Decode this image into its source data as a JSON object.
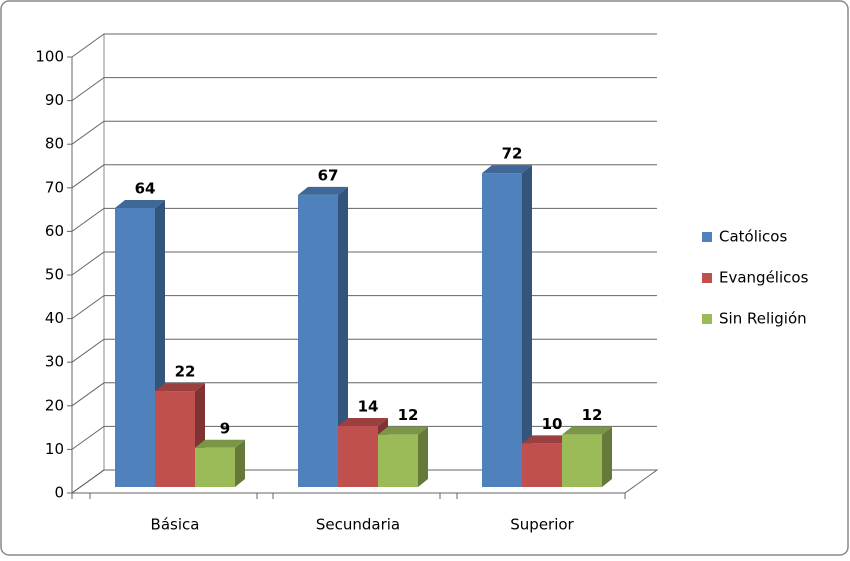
{
  "chart_data": {
    "type": "bar3d",
    "categories": [
      "Básica",
      "Secundaria",
      "Superior"
    ],
    "series": [
      {
        "name": "Católicos",
        "color": "#4f81bd",
        "values": [
          64,
          67,
          72
        ]
      },
      {
        "name": "Evangélicos",
        "color": "#c0504d",
        "values": [
          22,
          14,
          10
        ]
      },
      {
        "name": "Sin Religión",
        "color": "#9bbb59",
        "values": [
          9,
          12,
          12
        ]
      }
    ],
    "ylim": [
      0,
      100
    ],
    "yticks": [
      0,
      10,
      20,
      30,
      40,
      50,
      60,
      70,
      80,
      90,
      100
    ],
    "grid": true,
    "legend": "right"
  }
}
